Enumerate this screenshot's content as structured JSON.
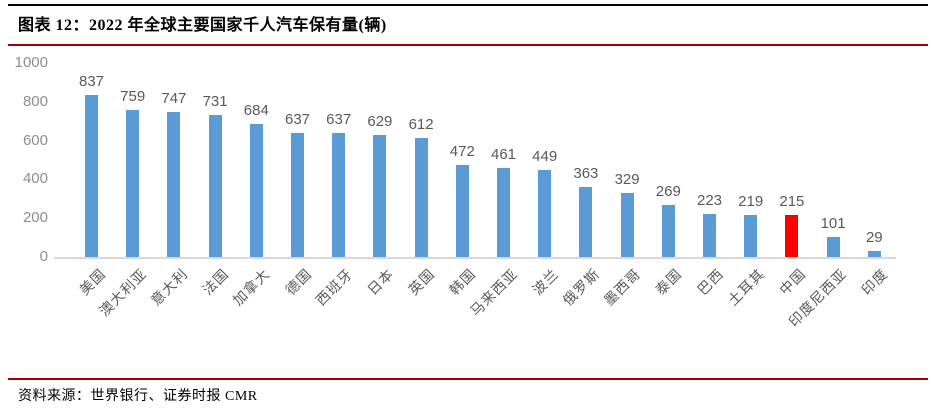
{
  "header": {
    "title": "图表 12：2022 年全球主要国家千人汽车保有量(辆)"
  },
  "footer": {
    "source": "资料来源：世界银行、证券时报 CMR"
  },
  "chart_data": {
    "type": "bar",
    "title": "2022 年全球主要国家千人汽车保有量(辆)",
    "categories": [
      "美国",
      "澳大利亚",
      "意大利",
      "法国",
      "加拿大",
      "德国",
      "西班牙",
      "日本",
      "英国",
      "韩国",
      "马来西亚",
      "波兰",
      "俄罗斯",
      "墨西哥",
      "泰国",
      "巴西",
      "土耳其",
      "中国",
      "印度尼西亚",
      "印度"
    ],
    "values": [
      837,
      759,
      747,
      731,
      684,
      637,
      637,
      629,
      612,
      472,
      461,
      449,
      363,
      329,
      269,
      223,
      219,
      215,
      101,
      29
    ],
    "highlight_category": "中国",
    "highlight_index": 17,
    "bar_color": "#5b9bd5",
    "highlight_color": "#ff0000",
    "xlabel": "",
    "ylabel": "",
    "ylim": [
      0,
      1000
    ],
    "yticks": [
      0,
      200,
      400,
      600,
      800,
      1000
    ],
    "grid": false,
    "legend": "none",
    "data_labels": true
  },
  "colors": {
    "rule_red": "#a00000",
    "rule_black": "#000000",
    "axis_line": "#d9d9d9",
    "tick_label": "#8e8e8e",
    "value_label": "#595959",
    "category_label": "#595959"
  }
}
